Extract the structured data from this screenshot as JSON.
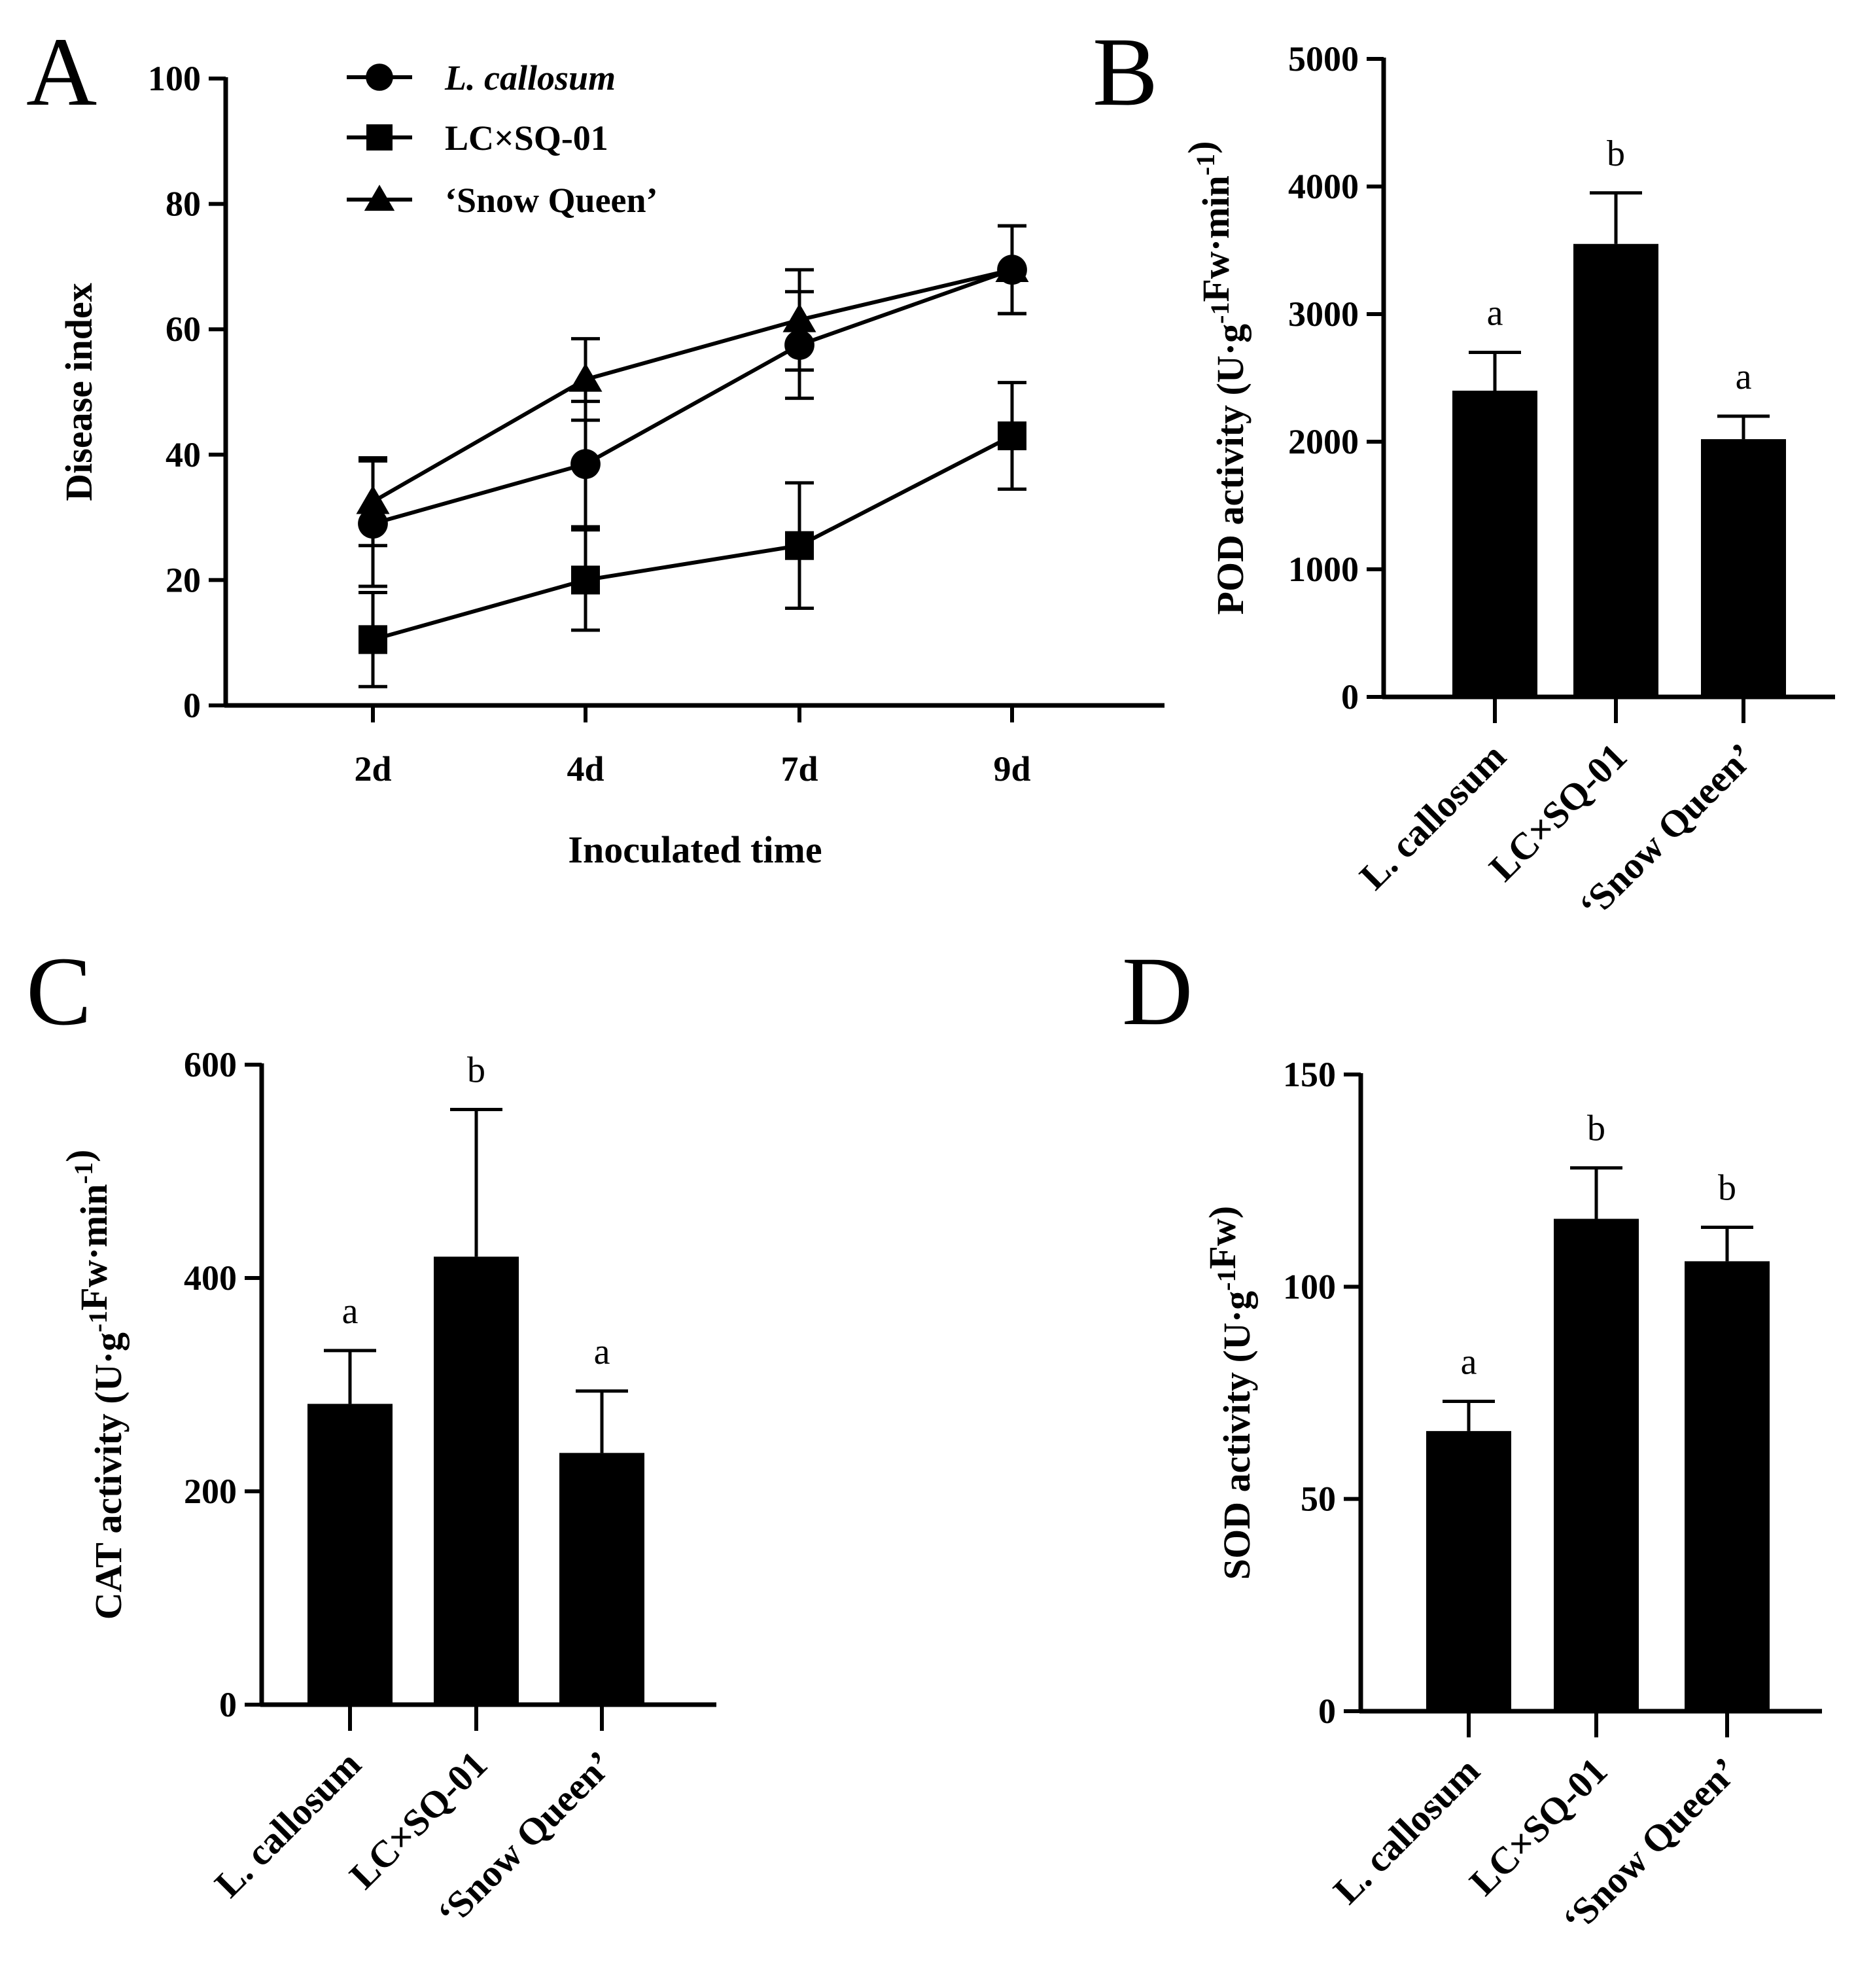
{
  "colors": {
    "ink": "#000000",
    "background": "#ffffff"
  },
  "chart_data": [
    {
      "panel": "A",
      "type": "line",
      "xlabel": "Inoculated time",
      "ylabel": "Disease index",
      "categories": [
        "2d",
        "4d",
        "7d",
        "9d"
      ],
      "ylim": [
        0,
        100
      ],
      "yticks": [
        0,
        20,
        40,
        60,
        80,
        100
      ],
      "legend_position": "top-left",
      "series": [
        {
          "name": "L. callosum",
          "marker": "circle",
          "values": [
            29,
            38.5,
            57.5,
            69.5
          ],
          "errors": [
            10,
            10,
            8.5,
            7
          ]
        },
        {
          "name": "LC×SQ-01",
          "marker": "square",
          "values": [
            10.5,
            20,
            25.5,
            43
          ],
          "errors": [
            7.5,
            8,
            10,
            8.5
          ]
        },
        {
          "name": "‘Snow Queen’",
          "marker": "triangle",
          "values": [
            32.5,
            52,
            61.5,
            69.5
          ],
          "errors": [
            7,
            6.5,
            8,
            7
          ]
        }
      ]
    },
    {
      "panel": "B",
      "type": "bar",
      "ylabel": "POD activity (U·g⁻¹Fw·min⁻¹)",
      "categories": [
        "L. callosum",
        "LC×SQ-01",
        "‘Snow Queen’"
      ],
      "values": [
        2400,
        3550,
        2020
      ],
      "errors": [
        300,
        400,
        180
      ],
      "significance": [
        "a",
        "b",
        "a"
      ],
      "ylim": [
        0,
        5000
      ],
      "yticks": [
        0,
        1000,
        2000,
        3000,
        4000,
        5000
      ]
    },
    {
      "panel": "C",
      "type": "bar",
      "ylabel": "CAT activity (U·g⁻¹Fw·min⁻¹)",
      "categories": [
        "L. callosum",
        "LC×SQ-01",
        "‘Snow Queen’"
      ],
      "values": [
        282,
        420,
        236
      ],
      "errors": [
        50,
        138,
        58
      ],
      "significance": [
        "a",
        "b",
        "a"
      ],
      "ylim": [
        0,
        600
      ],
      "yticks": [
        0,
        200,
        400,
        600
      ]
    },
    {
      "panel": "D",
      "type": "bar",
      "ylabel": "SOD activity (U·g⁻¹Fw)",
      "categories": [
        "L. callosum",
        "LC×SQ-01",
        "‘Snow Queen’"
      ],
      "values": [
        66,
        116,
        106
      ],
      "errors": [
        7,
        12,
        8
      ],
      "significance": [
        "a",
        "b",
        "b"
      ],
      "ylim": [
        0,
        150
      ],
      "yticks": [
        0,
        50,
        100,
        150
      ]
    }
  ]
}
